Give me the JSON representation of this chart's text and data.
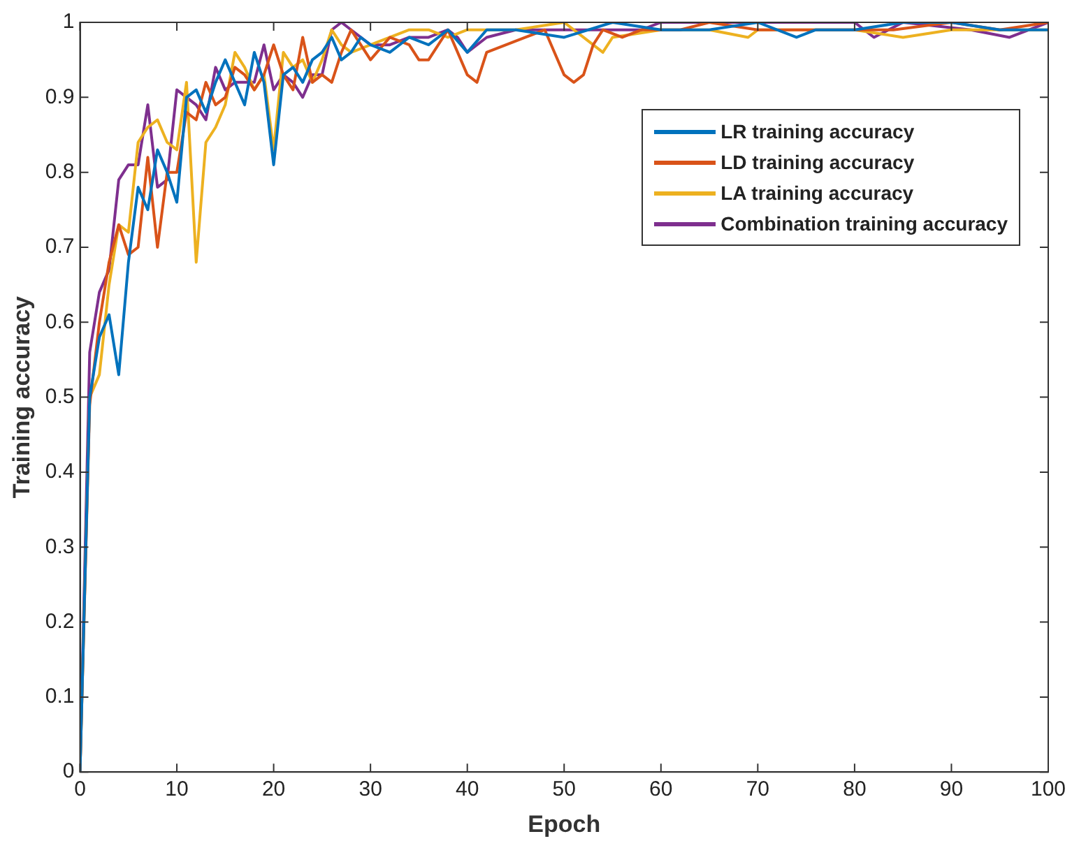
{
  "chart_data": {
    "type": "line",
    "xlabel": "Epoch",
    "ylabel": "Training accuracy",
    "xlim": [
      0,
      100
    ],
    "xticks": [
      0,
      10,
      20,
      30,
      40,
      50,
      60,
      70,
      80,
      90,
      100
    ],
    "ylim": [
      0,
      1
    ],
    "yticks": [
      0,
      0.1,
      0.2,
      0.3,
      0.4,
      0.5,
      0.6,
      0.7,
      0.8,
      0.9,
      1
    ],
    "grid": false,
    "legend": "top right",
    "marker": "none",
    "line_style": "solid",
    "series": [
      {
        "name": "LR training accuracy",
        "color": "#0072bd",
        "x": [
          0,
          1,
          2,
          3,
          4,
          5,
          6,
          7,
          8,
          9,
          10,
          11,
          12,
          13,
          14,
          15,
          16,
          17,
          18,
          19,
          20,
          21,
          22,
          23,
          24,
          25,
          26,
          27,
          28,
          29,
          30,
          32,
          34,
          36,
          38,
          40,
          42,
          45,
          50,
          55,
          60,
          65,
          70,
          74,
          76,
          80,
          85,
          90,
          95,
          100
        ],
        "values": [
          0,
          0.5,
          0.58,
          0.61,
          0.53,
          0.68,
          0.78,
          0.75,
          0.83,
          0.8,
          0.76,
          0.9,
          0.91,
          0.88,
          0.92,
          0.95,
          0.92,
          0.89,
          0.96,
          0.92,
          0.81,
          0.93,
          0.94,
          0.92,
          0.95,
          0.96,
          0.98,
          0.95,
          0.96,
          0.98,
          0.97,
          0.96,
          0.98,
          0.97,
          0.99,
          0.96,
          0.99,
          0.99,
          0.98,
          1,
          0.99,
          0.99,
          1,
          0.98,
          0.99,
          0.99,
          1,
          1,
          0.99,
          0.99
        ]
      },
      {
        "name": "LD training accuracy",
        "color": "#d95319",
        "x": [
          0,
          1,
          2,
          3,
          4,
          5,
          6,
          7,
          8,
          9,
          10,
          11,
          12,
          13,
          14,
          15,
          16,
          17,
          18,
          19,
          20,
          21,
          22,
          23,
          24,
          25,
          26,
          27,
          28,
          29,
          30,
          32,
          34,
          35,
          36,
          38,
          40,
          41,
          42,
          44,
          46,
          48,
          49,
          50,
          51,
          52,
          53,
          54,
          56,
          58,
          60,
          62,
          65,
          70,
          75,
          80,
          84,
          90,
          95,
          100
        ],
        "values": [
          0,
          0.49,
          0.6,
          0.68,
          0.73,
          0.69,
          0.7,
          0.82,
          0.7,
          0.8,
          0.8,
          0.88,
          0.87,
          0.92,
          0.89,
          0.9,
          0.94,
          0.93,
          0.91,
          0.93,
          0.97,
          0.93,
          0.91,
          0.98,
          0.92,
          0.93,
          0.92,
          0.96,
          0.99,
          0.97,
          0.95,
          0.98,
          0.97,
          0.95,
          0.95,
          0.99,
          0.93,
          0.92,
          0.96,
          0.97,
          0.98,
          0.99,
          0.96,
          0.93,
          0.92,
          0.93,
          0.97,
          0.99,
          0.98,
          0.99,
          0.99,
          0.99,
          1,
          0.99,
          0.99,
          0.99,
          0.99,
          1,
          0.99,
          1
        ]
      },
      {
        "name": "LA training accuracy",
        "color": "#edb120",
        "x": [
          0,
          1,
          2,
          3,
          4,
          5,
          6,
          7,
          8,
          9,
          10,
          11,
          12,
          13,
          14,
          15,
          16,
          17,
          18,
          19,
          20,
          21,
          22,
          23,
          24,
          25,
          26,
          27,
          28,
          30,
          32,
          34,
          36,
          38,
          40,
          45,
          50,
          53,
          54,
          55,
          60,
          65,
          69,
          70,
          75,
          80,
          85,
          90,
          95,
          100
        ],
        "values": [
          0,
          0.5,
          0.53,
          0.65,
          0.73,
          0.72,
          0.84,
          0.86,
          0.87,
          0.84,
          0.83,
          0.92,
          0.68,
          0.84,
          0.86,
          0.89,
          0.96,
          0.94,
          0.91,
          0.93,
          0.83,
          0.96,
          0.94,
          0.95,
          0.92,
          0.95,
          0.99,
          0.97,
          0.96,
          0.97,
          0.98,
          0.99,
          0.99,
          0.98,
          0.99,
          0.99,
          1,
          0.97,
          0.96,
          0.98,
          0.99,
          0.99,
          0.98,
          0.99,
          0.99,
          0.99,
          0.98,
          0.99,
          0.99,
          0.99
        ]
      },
      {
        "name": "Combination training accuracy",
        "color": "#7e2f8e",
        "x": [
          0,
          1,
          2,
          3,
          4,
          5,
          6,
          7,
          8,
          9,
          10,
          11,
          12,
          13,
          14,
          15,
          16,
          17,
          18,
          19,
          20,
          21,
          22,
          23,
          24,
          25,
          26,
          27,
          28,
          30,
          32,
          34,
          36,
          38,
          39,
          40,
          42,
          45,
          49,
          52,
          55,
          58,
          60,
          65,
          70,
          80,
          82,
          85,
          92,
          96,
          100
        ],
        "values": [
          0,
          0.56,
          0.64,
          0.67,
          0.79,
          0.81,
          0.81,
          0.89,
          0.78,
          0.79,
          0.91,
          0.9,
          0.89,
          0.87,
          0.94,
          0.91,
          0.92,
          0.92,
          0.92,
          0.97,
          0.91,
          0.93,
          0.92,
          0.9,
          0.93,
          0.93,
          0.99,
          1,
          0.99,
          0.97,
          0.97,
          0.98,
          0.98,
          0.99,
          0.98,
          0.96,
          0.98,
          0.99,
          0.99,
          0.99,
          0.99,
          0.99,
          1,
          1,
          1,
          1,
          0.98,
          1,
          0.99,
          0.98,
          1
        ]
      }
    ]
  }
}
